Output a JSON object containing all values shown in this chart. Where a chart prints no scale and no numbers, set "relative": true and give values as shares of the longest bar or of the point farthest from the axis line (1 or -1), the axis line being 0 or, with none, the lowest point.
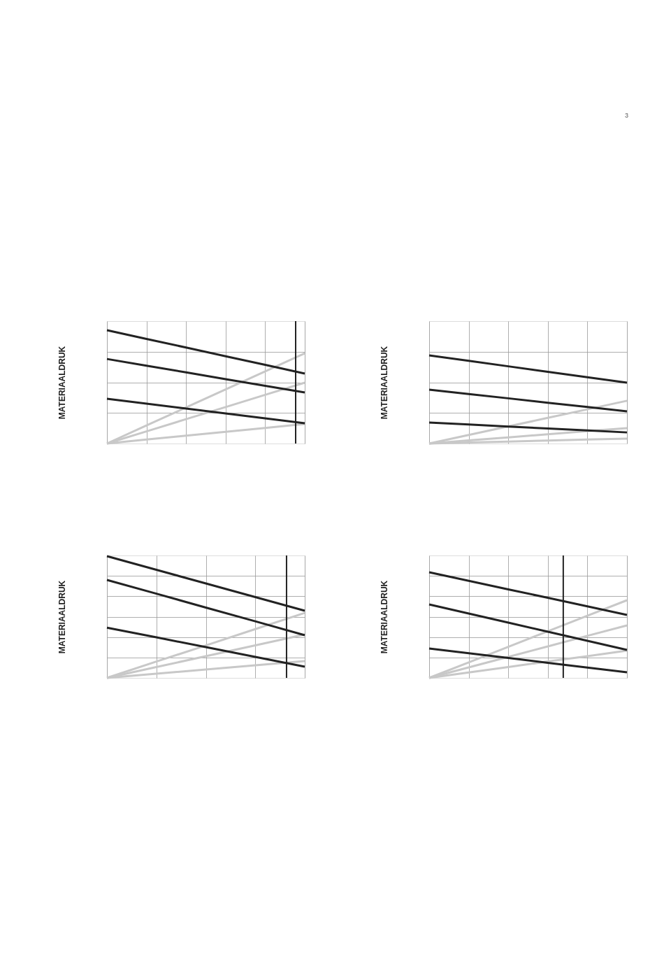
{
  "chart_data": [
    {
      "type": "line",
      "ylabel": "MATERIAALDRUK",
      "annotations": [
        "3"
      ],
      "relative": true,
      "grid": true,
      "tick_labels": false,
      "categories": [
        null,
        null,
        null,
        null,
        null,
        null
      ],
      "series": [
        {
          "color": "#c8c8c8",
          "values": [
            0,
            0.159,
            0.318,
            0.478,
            0.637,
            0.796
          ]
        },
        {
          "color": "#c8c8c8",
          "values": [
            0,
            0.107,
            0.215,
            0.322,
            0.43,
            0.537
          ]
        },
        {
          "color": "#c8c8c8",
          "values": [
            0,
            0.035,
            0.069,
            0.104,
            0.138,
            0.173
          ]
        },
        {
          "color": "#222222",
          "values": [
            1,
            0.923,
            0.847,
            0.77,
            0.694,
            0.617
          ]
        },
        {
          "color": "#222222",
          "values": [
            0.746,
            0.687,
            0.628,
            0.568,
            0.509,
            0.45
          ]
        },
        {
          "color": "#222222",
          "values": [
            0.395,
            0.352,
            0.309,
            0.265,
            0.222,
            0.179
          ]
        }
      ]
    },
    {
      "type": "line",
      "ylabel": "MATERIAALDRUK",
      "relative": true,
      "grid": true,
      "tick_labels": false,
      "categories": [
        null,
        null,
        null,
        null,
        null,
        null
      ],
      "series": [
        {
          "color": "#c8c8c8",
          "values": [
            0,
            0.097,
            0.194,
            0.291,
            0.388,
            0.485
          ]
        },
        {
          "color": "#c8c8c8",
          "values": [
            0,
            0.035,
            0.07,
            0.105,
            0.14,
            0.175
          ]
        },
        {
          "color": "#c8c8c8",
          "values": [
            0,
            0.011,
            0.022,
            0.034,
            0.045,
            0.056
          ]
        },
        {
          "color": "#222222",
          "values": [
            1,
            0.938,
            0.876,
            0.814,
            0.752,
            0.69
          ]
        },
        {
          "color": "#222222",
          "values": [
            0.611,
            0.562,
            0.513,
            0.463,
            0.414,
            0.365
          ]
        },
        {
          "color": "#222222",
          "values": [
            0.238,
            0.216,
            0.193,
            0.171,
            0.148,
            0.126
          ]
        }
      ]
    },
    {
      "type": "line",
      "ylabel": "MATERIAALDRUK",
      "relative": true,
      "grid": true,
      "tick_labels": false,
      "categories": [
        null,
        null,
        null,
        null,
        null
      ],
      "series": [
        {
          "color": "#c8c8c8",
          "values": [
            0,
            0.134,
            0.267,
            0.401,
            0.534
          ]
        },
        {
          "color": "#c8c8c8",
          "values": [
            0,
            0.089,
            0.178,
            0.267,
            0.356
          ]
        },
        {
          "color": "#c8c8c8",
          "values": [
            0,
            0.035,
            0.069,
            0.104,
            0.138
          ]
        },
        {
          "color": "#222222",
          "values": [
            1,
            0.888,
            0.776,
            0.664,
            0.552
          ]
        },
        {
          "color": "#222222",
          "values": [
            0.805,
            0.692,
            0.578,
            0.465,
            0.351
          ]
        },
        {
          "color": "#222222",
          "values": [
            0.413,
            0.333,
            0.253,
            0.172,
            0.092
          ]
        }
      ]
    },
    {
      "type": "line",
      "ylabel": "MATERIAALDRUK",
      "relative": true,
      "grid": true,
      "tick_labels": false,
      "categories": [
        null,
        null,
        null,
        null,
        null,
        null
      ],
      "series": [
        {
          "color": "#c8c8c8",
          "values": [
            0,
            0.147,
            0.294,
            0.441,
            0.588,
            0.735
          ]
        },
        {
          "color": "#c8c8c8",
          "values": [
            0,
            0.099,
            0.199,
            0.298,
            0.398,
            0.497
          ]
        },
        {
          "color": "#c8c8c8",
          "values": [
            0,
            0.052,
            0.103,
            0.155,
            0.206,
            0.258
          ]
        },
        {
          "color": "#222222",
          "values": [
            1,
            0.919,
            0.838,
            0.758,
            0.677,
            0.596
          ]
        },
        {
          "color": "#222222",
          "values": [
            0.695,
            0.609,
            0.523,
            0.437,
            0.351,
            0.265
          ]
        },
        {
          "color": "#222222",
          "values": [
            0.278,
            0.233,
            0.188,
            0.143,
            0.098,
            0.053
          ]
        }
      ]
    }
  ]
}
